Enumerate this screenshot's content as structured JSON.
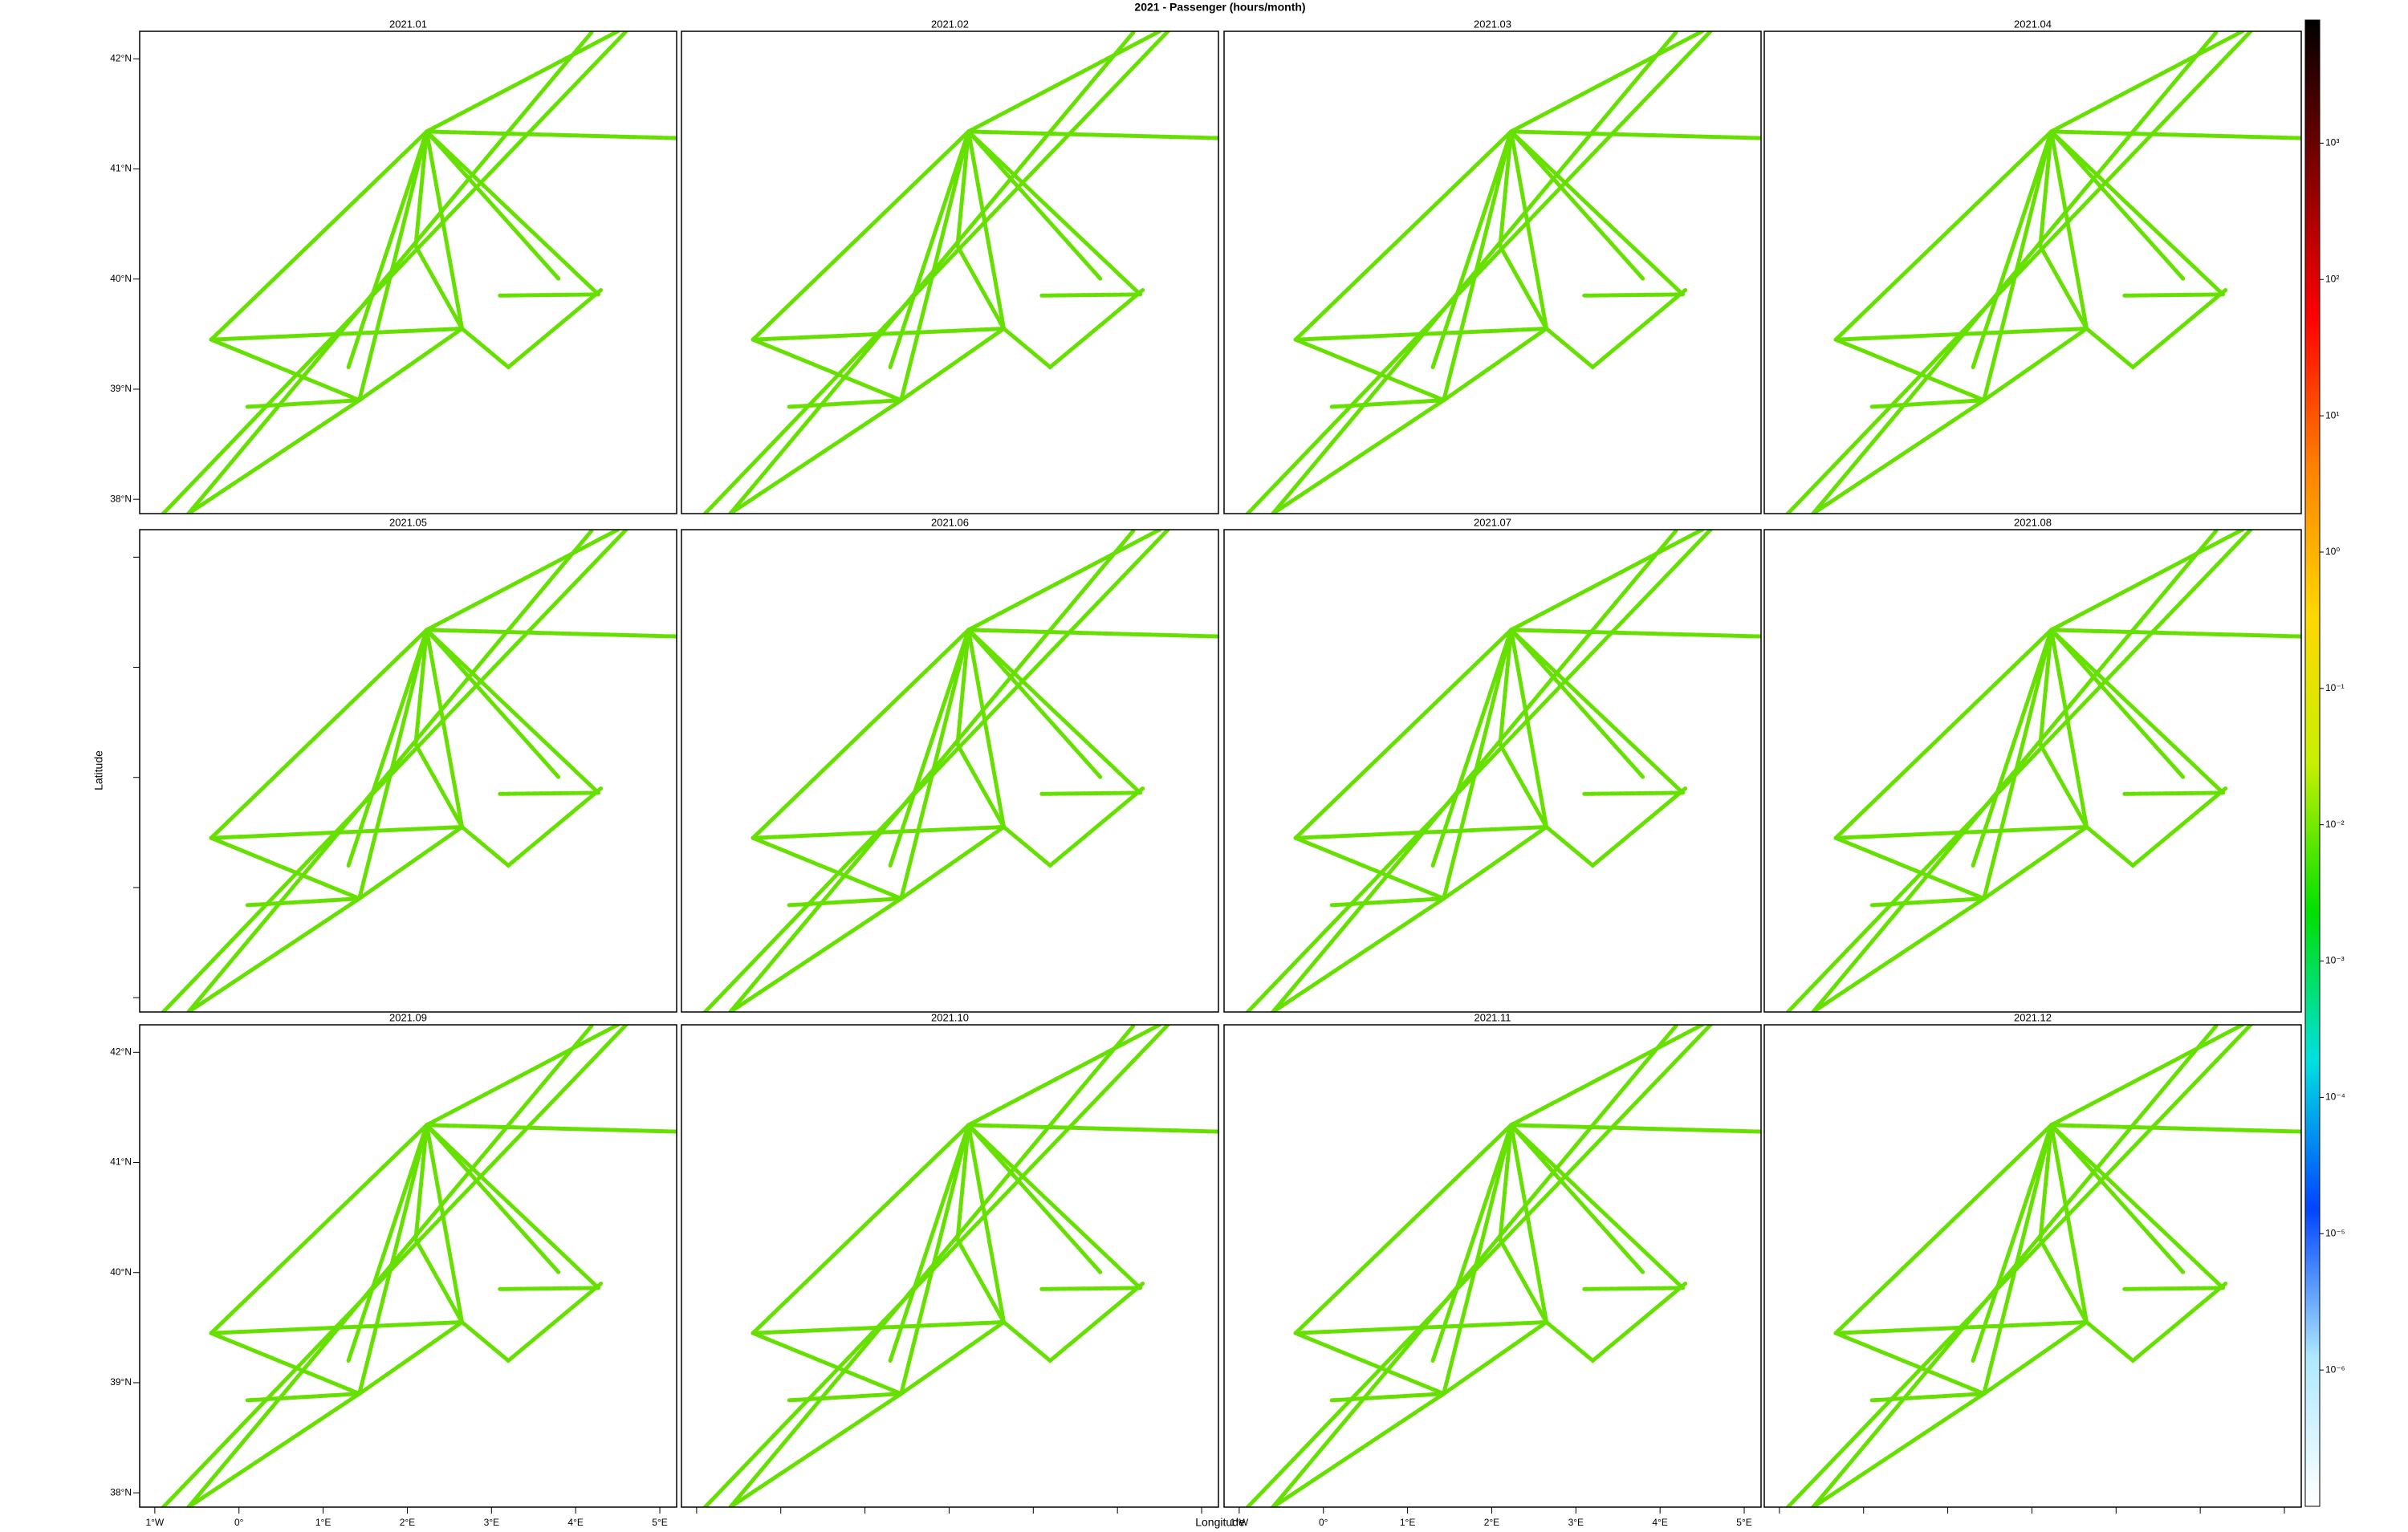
{
  "chart_data": {
    "type": "map",
    "title": "2021 - Passenger (hours/month)",
    "xlabel": "Longitude",
    "ylabel": "Latitude",
    "panels": [
      "2021.01",
      "2021.02",
      "2021.03",
      "2021.04",
      "2021.05",
      "2021.06",
      "2021.07",
      "2021.08",
      "2021.09",
      "2021.10",
      "2021.11",
      "2021.12"
    ],
    "xlim": [
      -1.18,
      5.2
    ],
    "ylim": [
      37.87,
      42.25
    ],
    "xticks": [
      {
        "value": -1,
        "label": "1°W"
      },
      {
        "value": 0,
        "label": "0°"
      },
      {
        "value": 1,
        "label": "1°E"
      },
      {
        "value": 2,
        "label": "2°E"
      },
      {
        "value": 3,
        "label": "3°E"
      },
      {
        "value": 4,
        "label": "4°E"
      },
      {
        "value": 5,
        "label": "5°E"
      }
    ],
    "yticks": [
      {
        "value": 38,
        "label": "38°N"
      },
      {
        "value": 39,
        "label": "39°N"
      },
      {
        "value": 40,
        "label": "40°N"
      },
      {
        "value": 41,
        "label": "41°N"
      },
      {
        "value": 42,
        "label": "42°N"
      }
    ],
    "track_color": "#66e000",
    "tracks": [
      {
        "x": [
          2.23,
          2.65
        ],
        "y": [
          41.34,
          39.55
        ]
      },
      {
        "x": [
          2.23,
          5.2
        ],
        "y": [
          41.34,
          41.28
        ]
      },
      {
        "x": [
          2.23,
          4.5
        ],
        "y": [
          41.34,
          42.25
        ]
      },
      {
        "x": [
          -0.33,
          2.65
        ],
        "y": [
          39.45,
          39.55
        ]
      },
      {
        "x": [
          -0.33,
          1.43
        ],
        "y": [
          39.45,
          38.9
        ]
      },
      {
        "x": [
          1.43,
          2.65
        ],
        "y": [
          38.9,
          39.55
        ]
      },
      {
        "x": [
          1.43,
          -0.6
        ],
        "y": [
          38.9,
          37.87
        ]
      },
      {
        "x": [
          2.65,
          3.2,
          4.3
        ],
        "y": [
          39.55,
          39.2,
          39.9
        ]
      },
      {
        "x": [
          2.23,
          3.8
        ],
        "y": [
          41.34,
          40.0
        ]
      },
      {
        "x": [
          2.23,
          4.27
        ],
        "y": [
          41.34,
          39.86
        ]
      },
      {
        "x": [
          2.23,
          1.43
        ],
        "y": [
          41.34,
          38.9
        ]
      },
      {
        "x": [
          2.23,
          2.1,
          2.65
        ],
        "y": [
          41.34,
          40.3,
          39.55
        ]
      },
      {
        "x": [
          -0.9,
          4.6
        ],
        "y": [
          37.87,
          42.25
        ]
      },
      {
        "x": [
          -0.6,
          4.2
        ],
        "y": [
          37.87,
          42.25
        ]
      },
      {
        "x": [
          0.1,
          1.43
        ],
        "y": [
          38.84,
          38.9
        ]
      },
      {
        "x": [
          3.1,
          4.27
        ],
        "y": [
          39.85,
          39.86
        ]
      },
      {
        "x": [
          1.3,
          2.23
        ],
        "y": [
          39.2,
          41.34
        ]
      },
      {
        "x": [
          -0.33,
          2.23
        ],
        "y": [
          39.45,
          41.34
        ]
      }
    ],
    "colorbar": {
      "log": true,
      "lim": [
        1e-07,
        8000
      ],
      "colors": [
        "#ffffff",
        "#aee8ff",
        "#0044ff",
        "#00e0e0",
        "#00e000",
        "#c8f000",
        "#ffd700",
        "#ff8000",
        "#ff0000",
        "#800000",
        "#000000"
      ],
      "ticks": [
        {
          "value": 1e-06,
          "label": "10⁻⁶"
        },
        {
          "value": 1e-05,
          "label": "10⁻⁵"
        },
        {
          "value": 0.0001,
          "label": "10⁻⁴"
        },
        {
          "value": 0.001,
          "label": "10⁻³"
        },
        {
          "value": 0.01,
          "label": "10⁻²"
        },
        {
          "value": 0.1,
          "label": "10⁻¹"
        },
        {
          "value": 1,
          "label": "10⁰"
        },
        {
          "value": 10,
          "label": "10¹"
        },
        {
          "value": 100,
          "label": "10²"
        },
        {
          "value": 1000,
          "label": "10³"
        }
      ]
    }
  }
}
